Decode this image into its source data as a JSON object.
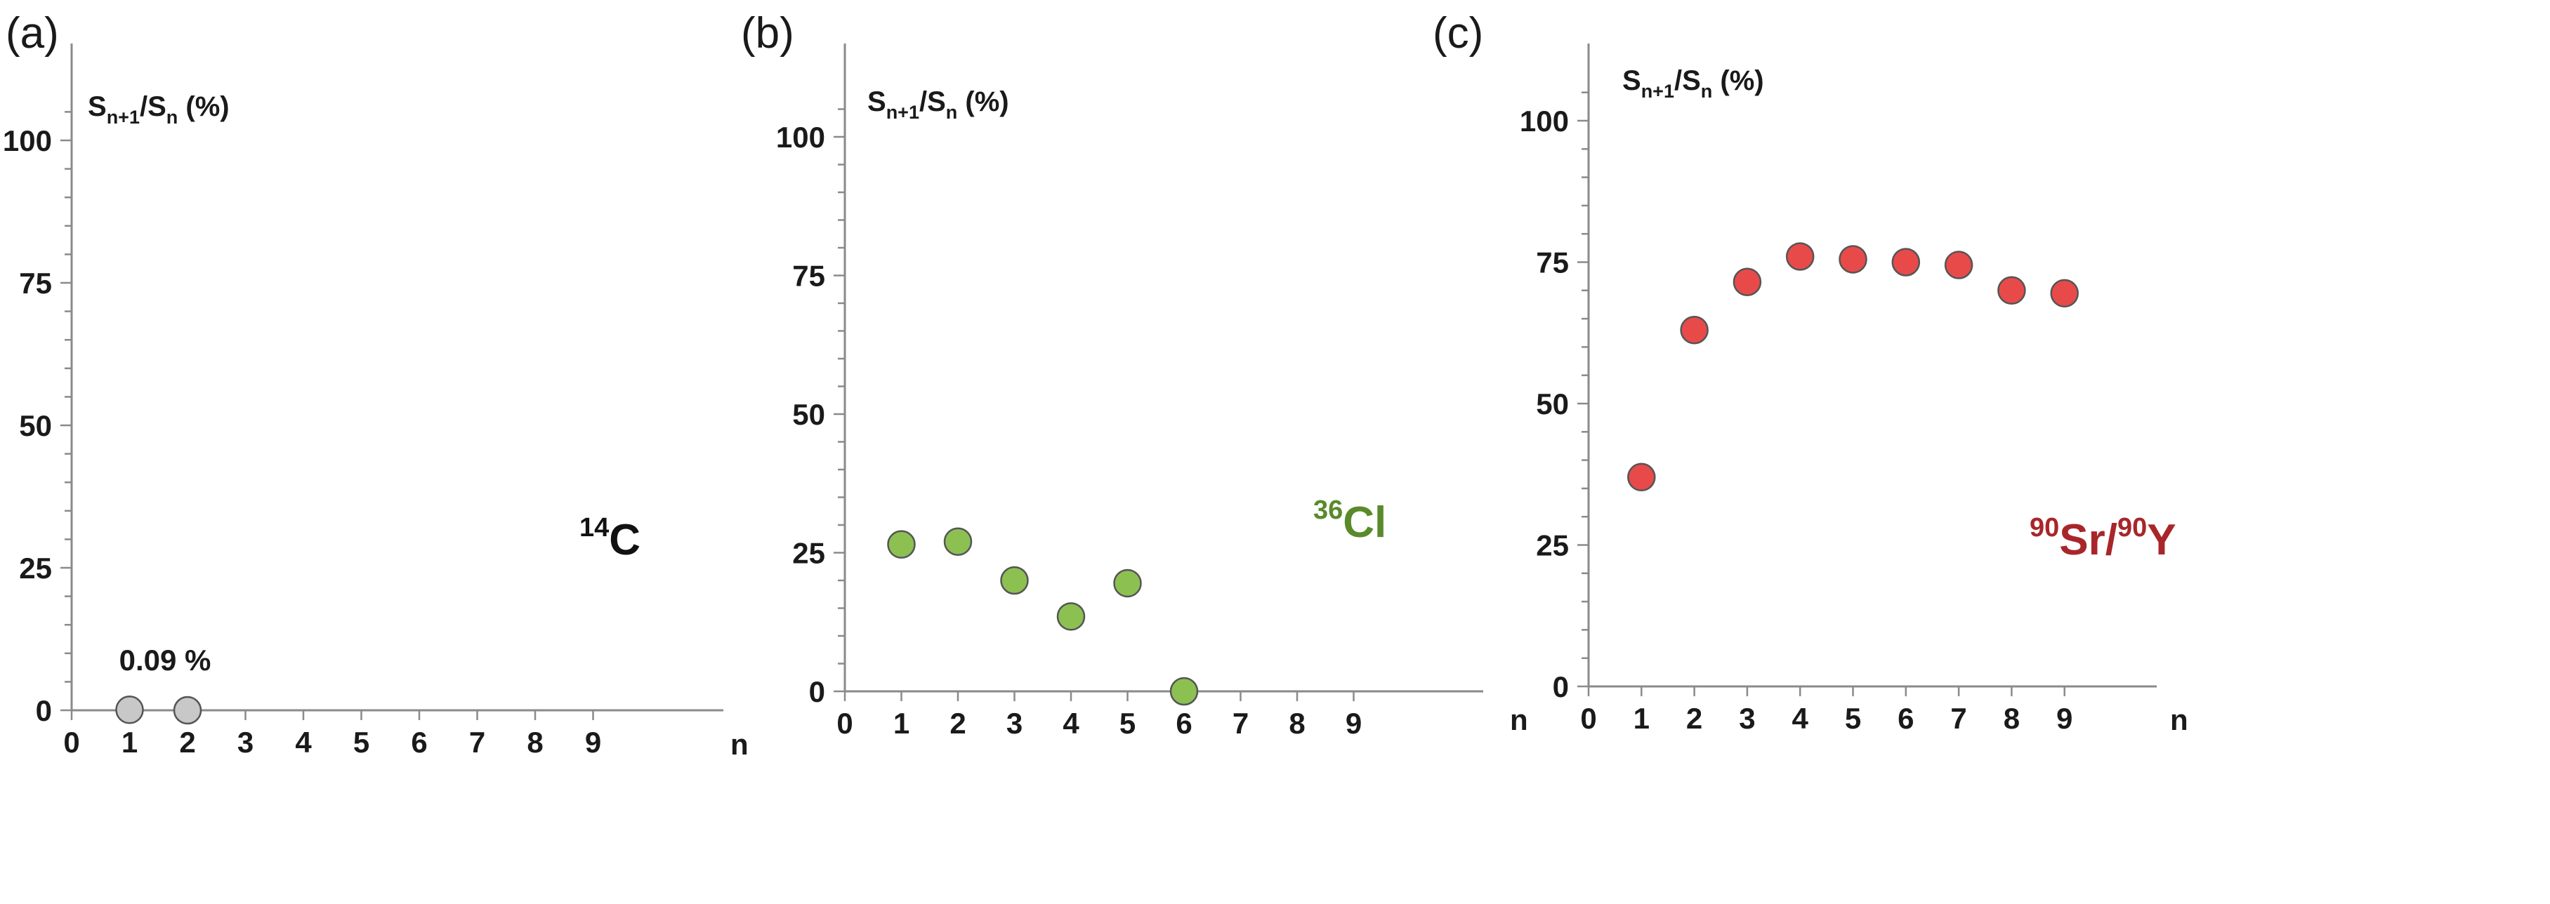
{
  "chart_data": [
    {
      "type": "scatter",
      "panel": "(a)",
      "ylabel": {
        "base": "S",
        "sub1": "n+1",
        "mid": "/S",
        "sub2": "n",
        "tail": " (%)"
      },
      "xlabel": "n",
      "xlim": [
        0,
        9
      ],
      "ylim": [
        0,
        100
      ],
      "xticks": [
        "0",
        "1",
        "2",
        "3",
        "4",
        "5",
        "6",
        "7",
        "8",
        "9"
      ],
      "yticks": [
        "0",
        "25",
        "50",
        "75",
        "100"
      ],
      "isotope": {
        "sup": "14",
        "text": "C",
        "color": "#111111"
      },
      "annotation": "0.09 %",
      "point_color": "#c8c8c8",
      "points": [
        {
          "x": 1,
          "y": 0.09
        },
        {
          "x": 2,
          "y": 0
        }
      ]
    },
    {
      "type": "scatter",
      "panel": "(b)",
      "ylabel": {
        "base": "S",
        "sub1": "n+1",
        "mid": "/S",
        "sub2": "n",
        "tail": " (%)"
      },
      "xlabel": "n",
      "xlim": [
        0,
        9
      ],
      "ylim": [
        0,
        100
      ],
      "xticks": [
        "0",
        "1",
        "2",
        "3",
        "4",
        "5",
        "6",
        "7",
        "8",
        "9"
      ],
      "yticks": [
        "0",
        "25",
        "50",
        "75",
        "100"
      ],
      "isotope": {
        "sup": "36",
        "text": "Cl",
        "color": "#5a8a2a"
      },
      "point_color": "#8cc152",
      "points": [
        {
          "x": 1,
          "y": 26.5
        },
        {
          "x": 2,
          "y": 27
        },
        {
          "x": 3,
          "y": 20
        },
        {
          "x": 4,
          "y": 13.5
        },
        {
          "x": 5,
          "y": 19.5
        },
        {
          "x": 6,
          "y": 0
        }
      ]
    },
    {
      "type": "scatter",
      "panel": "(c)",
      "ylabel": {
        "base": "S",
        "sub1": "n+1",
        "mid": "/S",
        "sub2": "n",
        "tail": " (%)"
      },
      "xlabel": "n",
      "xlim": [
        0,
        9
      ],
      "ylim": [
        0,
        100
      ],
      "xticks": [
        "0",
        "1",
        "2",
        "3",
        "4",
        "5",
        "6",
        "7",
        "8",
        "9"
      ],
      "yticks": [
        "0",
        "25",
        "50",
        "75",
        "100"
      ],
      "isotope": {
        "sup": "90",
        "text": "Sr/",
        "sup2": "90",
        "text2": "Y",
        "color": "#a8262a"
      },
      "point_color": "#e84a4a",
      "points": [
        {
          "x": 1,
          "y": 37
        },
        {
          "x": 2,
          "y": 63
        },
        {
          "x": 3,
          "y": 71.5
        },
        {
          "x": 4,
          "y": 76
        },
        {
          "x": 5,
          "y": 75.5
        },
        {
          "x": 6,
          "y": 75
        },
        {
          "x": 7,
          "y": 74.5
        },
        {
          "x": 8,
          "y": 70
        },
        {
          "x": 9,
          "y": 69.5
        }
      ]
    }
  ]
}
